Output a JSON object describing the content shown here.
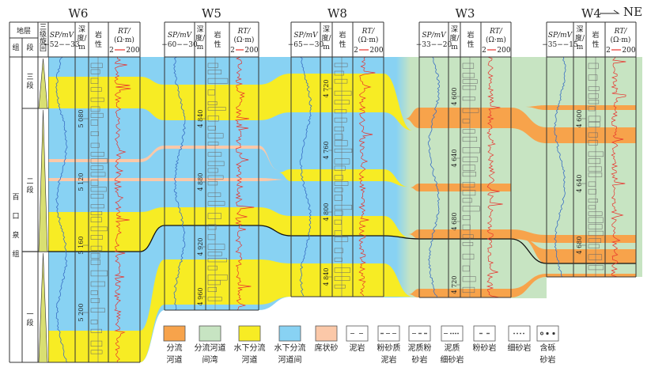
{
  "direction": "NE",
  "strat": {
    "header": "地层",
    "formation_col": "组",
    "member_col": "段",
    "cycle_col": [
      "三",
      "级",
      "旋",
      "回"
    ],
    "formation": [
      "百",
      "口",
      "泉",
      "组"
    ],
    "members": [
      [
        "三",
        "段"
      ],
      [
        "二",
        "段"
      ],
      [
        "一",
        "段"
      ]
    ]
  },
  "wells": [
    {
      "name": "W6",
      "sp_label": "SP/mV",
      "sp_range": "−52−−33",
      "depth_label": [
        "深",
        "度/",
        "m"
      ],
      "lith_label": [
        "岩",
        "性"
      ],
      "rt_label": "RT/",
      "rt_unit": "(Ω·m)",
      "rt_min": "2",
      "rt_max": "200",
      "depths": [
        "5 080",
        "5 120",
        "5 160",
        "5 200"
      ]
    },
    {
      "name": "W5",
      "sp_label": "SP/mV",
      "sp_range": "−60−−30",
      "depth_label": [
        "深",
        "度/",
        "m"
      ],
      "lith_label": [
        "岩",
        "性"
      ],
      "rt_label": "RT/",
      "rt_unit": "(Ω·m)",
      "rt_min": "2",
      "rt_max": "200",
      "depths": [
        "4 840",
        "4 880",
        "4 920",
        "4 960"
      ]
    },
    {
      "name": "W8",
      "sp_label": "SP/mV",
      "sp_range": "−65−−30",
      "depth_label": [
        "深",
        "度/",
        "m"
      ],
      "lith_label": [
        "岩",
        "性"
      ],
      "rt_label": "RT/",
      "rt_unit": "(Ω·m)",
      "rt_min": "2",
      "rt_max": "200",
      "depths": [
        "4 720",
        "4 760",
        "4 800",
        "4 840"
      ]
    },
    {
      "name": "W3",
      "sp_label": "SP/mV",
      "sp_range": "−33−−20",
      "depth_label": [
        "深",
        "度/",
        "m"
      ],
      "lith_label": [
        "岩",
        "性"
      ],
      "rt_label": "RT/",
      "rt_unit": "(Ω·m)",
      "rt_min": "2",
      "rt_max": "200",
      "depths": [
        "4 600",
        "4 640",
        "4 680",
        "4 720"
      ]
    },
    {
      "name": "W4",
      "sp_label": "SP/mV",
      "sp_range": "−35−−15",
      "depth_label": [
        "深",
        "度/",
        "m"
      ],
      "lith_label": [
        "岩",
        "性"
      ],
      "rt_label": "RT/",
      "rt_unit": "(Ω·m)",
      "rt_min": "2",
      "rt_max": "200",
      "depths": [
        "4 600",
        "4 640",
        "4 680"
      ]
    }
  ],
  "colors": {
    "distributary_channel": "#f7a34b",
    "interdistributary_bay": "#c7e4c2",
    "subaqueous_channel": "#f7ec24",
    "subaqueous_interchannel": "#88d2f3",
    "sheet_sand": "#fbc8a8",
    "cycle": "#d9df72",
    "sp_curve": "#3a6fc4",
    "rt_curve": "#e8312c"
  },
  "legend": [
    {
      "kind": "fill",
      "color": "distributary_channel",
      "label": [
        "分流",
        "河道"
      ]
    },
    {
      "kind": "fill",
      "color": "interdistributary_bay",
      "label": [
        "分流河道",
        "间湾"
      ]
    },
    {
      "kind": "fill",
      "color": "subaqueous_channel",
      "label": [
        "水下分流",
        "河道"
      ]
    },
    {
      "kind": "fill",
      "color": "subaqueous_interchannel",
      "label": [
        "水下分流",
        "河道间"
      ]
    },
    {
      "kind": "fill",
      "color": "sheet_sand",
      "label": [
        "席状砂"
      ]
    },
    {
      "kind": "mudstone",
      "label": [
        "泥岩"
      ]
    },
    {
      "kind": "silty-mudstone",
      "label": [
        "粉砂质",
        "泥岩"
      ]
    },
    {
      "kind": "muddy-siltstone",
      "label": [
        "泥质粉",
        "砂岩"
      ]
    },
    {
      "kind": "muddy-fine-sandstone",
      "label": [
        "泥质",
        "细砂岩"
      ]
    },
    {
      "kind": "siltstone",
      "label": [
        "粉砂岩"
      ]
    },
    {
      "kind": "fine-sandstone",
      "label": [
        "细砂岩"
      ]
    },
    {
      "kind": "pebbly-sandstone",
      "label": [
        "含砾",
        "砂岩"
      ]
    }
  ]
}
